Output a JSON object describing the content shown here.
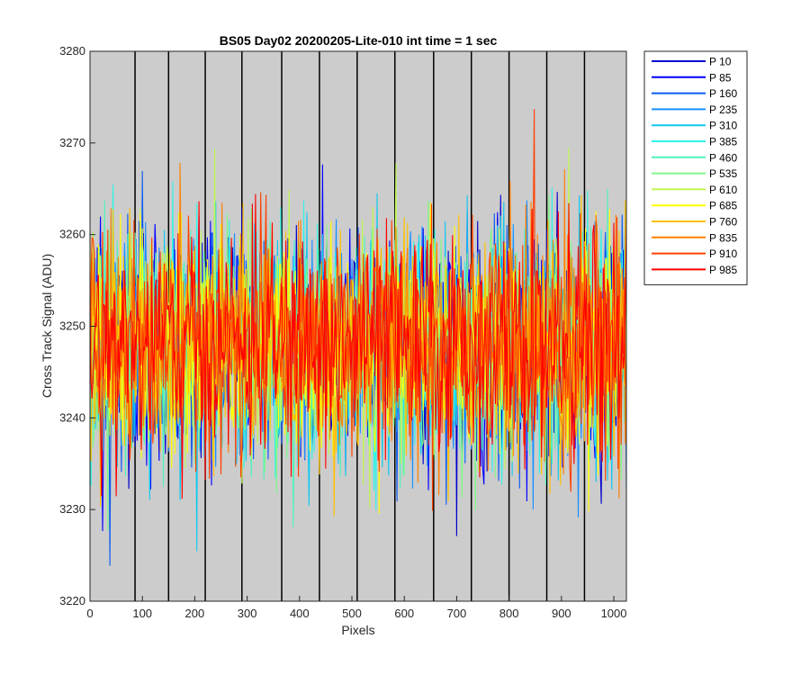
{
  "chart_data": {
    "type": "line",
    "title": "BS05 Day02 20200205-Lite-010 int time = 1 sec",
    "xlabel": "Pixels",
    "ylabel": "Cross Track Signal (ADU)",
    "xlim": [
      0,
      1024
    ],
    "ylim": [
      3220,
      3280
    ],
    "xticks": [
      0,
      100,
      200,
      300,
      400,
      500,
      600,
      700,
      800,
      900,
      1000
    ],
    "yticks": [
      3220,
      3230,
      3240,
      3250,
      3260,
      3270,
      3280
    ],
    "vertical_lines_x": [
      86,
      150,
      220,
      290,
      366,
      438,
      510,
      582,
      656,
      728,
      800,
      872,
      944
    ],
    "plot_background": "#cccccc",
    "legend_position": "outside top-right",
    "noise_center": 3248,
    "noise_sigma": 6,
    "series": [
      {
        "name": "P 10",
        "color": "#0000cc"
      },
      {
        "name": "P 85",
        "color": "#0000ff"
      },
      {
        "name": "P 160",
        "color": "#0b5bf0"
      },
      {
        "name": "P 235",
        "color": "#1890ff"
      },
      {
        "name": "P 310",
        "color": "#10c8f0"
      },
      {
        "name": "P 385",
        "color": "#30f4e6"
      },
      {
        "name": "P 460",
        "color": "#50f4b8"
      },
      {
        "name": "P 535",
        "color": "#80f888"
      },
      {
        "name": "P 610",
        "color": "#c0f850"
      },
      {
        "name": "P 685",
        "color": "#ffff00"
      },
      {
        "name": "P 760",
        "color": "#ffc000"
      },
      {
        "name": "P 835",
        "color": "#ff8000"
      },
      {
        "name": "P 910",
        "color": "#ff4000"
      },
      {
        "name": "P 985",
        "color": "#ff0000"
      }
    ]
  }
}
